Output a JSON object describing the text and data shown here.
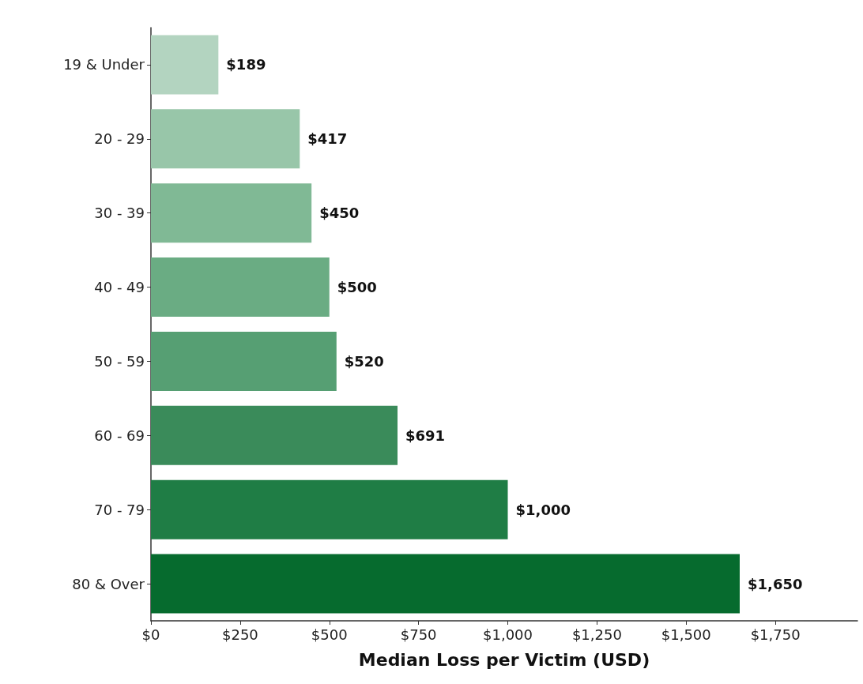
{
  "chart_data": {
    "type": "bar",
    "orientation": "horizontal",
    "xlabel": "Median Loss per Victim (USD)",
    "categories": [
      "19 & Under",
      "20 - 29",
      "30 - 39",
      "40 - 49",
      "50 - 59",
      "60 - 69",
      "70 - 79",
      "80 & Over"
    ],
    "values": [
      189,
      417,
      450,
      500,
      520,
      691,
      1000,
      1650
    ],
    "colors": [
      "#b3d4c0",
      "#98c6a9",
      "#80b995",
      "#6aac83",
      "#569f73",
      "#3a8b5a",
      "#1f7d45",
      "#066b2e"
    ],
    "value_labels": [
      "$189",
      "$417",
      "$450",
      "$500",
      "$520",
      "$691",
      "$1,000",
      "$1,650"
    ],
    "xlim": [
      0,
      1980
    ],
    "xticks": [
      {
        "value": 0,
        "label": "$0"
      },
      {
        "value": 250,
        "label": "$250"
      },
      {
        "value": 500,
        "label": "$500"
      },
      {
        "value": 750,
        "label": "$750"
      },
      {
        "value": 1000,
        "label": "$1,000"
      },
      {
        "value": 1250,
        "label": "$1,250"
      },
      {
        "value": 1500,
        "label": "$1,500"
      },
      {
        "value": 1750,
        "label": "$1,750"
      }
    ],
    "grid": false
  }
}
